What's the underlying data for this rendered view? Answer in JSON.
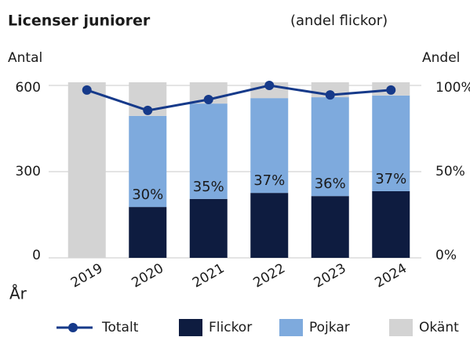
{
  "chart_data": {
    "type": "bar",
    "title": "Licenser juniorer",
    "subtitle": "(andel flickor)",
    "y_label": "Antal",
    "y2_label": "Andel",
    "x_label": "År",
    "categories": [
      "2019",
      "2020",
      "2021",
      "2022",
      "2023",
      "2024"
    ],
    "series": [
      {
        "name": "Totalt",
        "color": "#163a8a",
        "kind": "line",
        "values": [
          584,
          513,
          551,
          600,
          567,
          584
        ]
      },
      {
        "name": "Flickor",
        "color": "#0e1c40",
        "kind": "bar",
        "values": [
          null,
          177,
          205,
          226,
          215,
          232
        ]
      },
      {
        "name": "Pojkar",
        "color": "#7eaadd",
        "kind": "bar",
        "values": [
          null,
          317,
          332,
          330,
          344,
          333
        ]
      },
      {
        "name": "Okänt",
        "color": "#d3d3d3",
        "kind": "bar",
        "values": [
          611,
          117,
          74,
          55,
          52,
          46
        ]
      }
    ],
    "share": {
      "axis": "y2",
      "values": [
        null,
        30,
        35,
        37,
        36,
        37
      ],
      "value_labels": [
        null,
        "30%",
        "35%",
        "37%",
        "36%",
        "37%"
      ]
    },
    "ylim": [
      0,
      611
    ],
    "yticks": [
      0,
      300,
      600
    ],
    "y2lim": [
      0,
      100
    ],
    "y2ticks": [
      {
        "value": 0,
        "label": "0%"
      },
      {
        "value": 50,
        "label": "50%"
      },
      {
        "value": 100,
        "label": "100%"
      }
    ],
    "grid": true,
    "legend": "bottom"
  }
}
